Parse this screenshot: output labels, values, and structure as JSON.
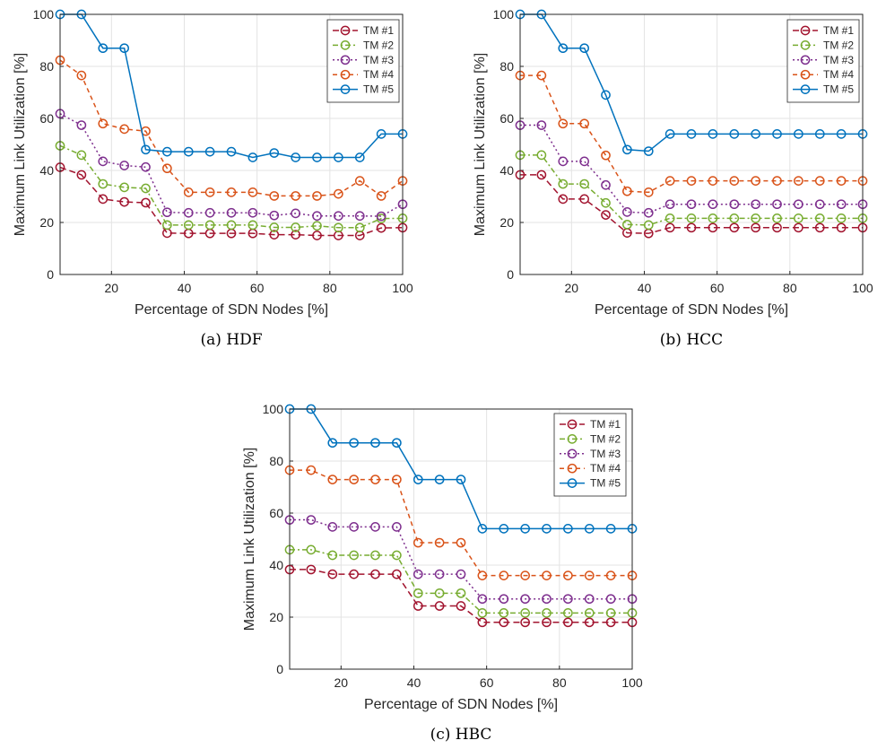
{
  "series_style": {
    "colors": [
      "#A2142F",
      "#77AC30",
      "#7E2F8E",
      "#D95319",
      "#0072BD"
    ],
    "dashes": [
      "7 4",
      "6 3 2 3",
      "2 3",
      "5 4",
      ""
    ]
  },
  "chart_data": [
    {
      "type": "line",
      "caption": "(a) HDF",
      "xlabel": "Percentage of SDN Nodes [%]",
      "ylabel": "Maximum Link Utilization [%]",
      "xlim": [
        5.88,
        100
      ],
      "ylim": [
        0,
        100
      ],
      "xticks": [
        "20",
        "40",
        "60",
        "80",
        "100"
      ],
      "yticks": [
        "0",
        "20",
        "40",
        "60",
        "80",
        "100"
      ],
      "grid": true,
      "legend_position": "top-right",
      "x": [
        5.88,
        11.76,
        17.65,
        23.53,
        29.41,
        35.29,
        41.18,
        47.06,
        52.94,
        58.82,
        64.71,
        70.59,
        76.47,
        82.35,
        88.24,
        94.12,
        100
      ],
      "series": [
        {
          "name": "TM #1",
          "values": [
            41.2,
            38.3,
            29.0,
            27.9,
            27.6,
            15.9,
            15.8,
            15.8,
            15.8,
            15.8,
            15.3,
            15.3,
            15.0,
            15.0,
            15.0,
            17.9,
            18.0
          ]
        },
        {
          "name": "TM #2",
          "values": [
            49.5,
            45.9,
            34.8,
            33.5,
            33.1,
            19.0,
            19.0,
            19.0,
            19.0,
            19.0,
            18.1,
            18.1,
            18.7,
            18.0,
            18.0,
            21.5,
            21.6
          ]
        },
        {
          "name": "TM #3",
          "values": [
            61.8,
            57.4,
            43.5,
            41.9,
            41.3,
            23.9,
            23.7,
            23.7,
            23.7,
            23.7,
            22.7,
            23.5,
            22.5,
            22.5,
            22.5,
            22.4,
            27.0
          ]
        },
        {
          "name": "TM #4",
          "values": [
            82.4,
            76.5,
            58.0,
            55.9,
            55.1,
            40.8,
            31.6,
            31.6,
            31.6,
            31.6,
            30.2,
            30.2,
            30.2,
            31.0,
            36.0,
            30.2,
            36.0
          ]
        },
        {
          "name": "TM #5",
          "values": [
            100,
            100,
            87.0,
            87.0,
            48.0,
            47.2,
            47.2,
            47.2,
            47.2,
            45.0,
            46.7,
            45.0,
            45.0,
            45.0,
            45.0,
            54.0,
            54.0
          ]
        }
      ]
    },
    {
      "type": "line",
      "caption": "(b) HCC",
      "xlabel": "Percentage of SDN Nodes [%]",
      "ylabel": "Maximum Link Utilization [%]",
      "xlim": [
        5.88,
        100
      ],
      "ylim": [
        0,
        100
      ],
      "xticks": [
        "20",
        "40",
        "60",
        "80",
        "100"
      ],
      "yticks": [
        "0",
        "20",
        "40",
        "60",
        "80",
        "100"
      ],
      "grid": true,
      "legend_position": "top-right",
      "x": [
        5.88,
        11.76,
        17.65,
        23.53,
        29.41,
        35.29,
        41.18,
        47.06,
        52.94,
        58.82,
        64.71,
        70.59,
        76.47,
        82.35,
        88.24,
        94.12,
        100
      ],
      "series": [
        {
          "name": "TM #1",
          "values": [
            38.3,
            38.3,
            29.0,
            29.0,
            22.9,
            16.0,
            15.8,
            18.0,
            18.0,
            18.0,
            18.0,
            18.0,
            18.0,
            18.0,
            18.0,
            18.0,
            18.0
          ]
        },
        {
          "name": "TM #2",
          "values": [
            45.9,
            45.9,
            34.8,
            34.8,
            27.5,
            19.2,
            19.0,
            21.6,
            21.6,
            21.6,
            21.6,
            21.6,
            21.6,
            21.6,
            21.6,
            21.6,
            21.6
          ]
        },
        {
          "name": "TM #3",
          "values": [
            57.4,
            57.4,
            43.5,
            43.5,
            34.4,
            24.0,
            23.7,
            27.0,
            27.0,
            27.0,
            27.0,
            27.0,
            27.0,
            27.0,
            27.0,
            27.0,
            27.0
          ]
        },
        {
          "name": "TM #4",
          "values": [
            76.5,
            76.5,
            58.0,
            58.0,
            45.8,
            32.0,
            31.6,
            36.0,
            36.0,
            36.0,
            36.0,
            36.0,
            36.0,
            36.0,
            36.0,
            36.0,
            36.0
          ]
        },
        {
          "name": "TM #5",
          "values": [
            100,
            100,
            87.0,
            87.0,
            69.0,
            48.0,
            47.4,
            54.0,
            54.0,
            54.0,
            54.0,
            54.0,
            54.0,
            54.0,
            54.0,
            54.0,
            54.0
          ]
        }
      ]
    },
    {
      "type": "line",
      "caption": "(c) HBC",
      "xlabel": "Percentage of SDN Nodes [%]",
      "ylabel": "Maximum Link Utilization [%]",
      "xlim": [
        5.88,
        100
      ],
      "ylim": [
        0,
        100
      ],
      "xticks": [
        "20",
        "40",
        "60",
        "80",
        "100"
      ],
      "yticks": [
        "0",
        "20",
        "40",
        "60",
        "80",
        "100"
      ],
      "grid": true,
      "legend_position": "top-right",
      "x": [
        5.88,
        11.76,
        17.65,
        23.53,
        29.41,
        35.29,
        41.18,
        47.06,
        52.94,
        58.82,
        64.71,
        70.59,
        76.47,
        82.35,
        88.24,
        94.12,
        100
      ],
      "series": [
        {
          "name": "TM #1",
          "values": [
            38.3,
            38.3,
            36.5,
            36.5,
            36.5,
            36.5,
            24.3,
            24.3,
            24.3,
            18.0,
            18.0,
            18.0,
            18.0,
            18.0,
            18.0,
            18.0,
            18.0
          ]
        },
        {
          "name": "TM #2",
          "values": [
            45.9,
            45.9,
            43.8,
            43.8,
            43.8,
            43.8,
            29.2,
            29.2,
            29.2,
            21.6,
            21.6,
            21.6,
            21.6,
            21.6,
            21.6,
            21.6,
            21.6
          ]
        },
        {
          "name": "TM #3",
          "values": [
            57.4,
            57.4,
            54.7,
            54.7,
            54.7,
            54.7,
            36.5,
            36.5,
            36.5,
            27.0,
            27.0,
            27.0,
            27.0,
            27.0,
            27.0,
            27.0,
            27.0
          ]
        },
        {
          "name": "TM #4",
          "values": [
            76.5,
            76.5,
            72.9,
            72.9,
            72.9,
            72.9,
            48.6,
            48.6,
            48.6,
            36.0,
            36.0,
            36.0,
            36.0,
            36.0,
            36.0,
            36.0,
            36.0
          ]
        },
        {
          "name": "TM #5",
          "values": [
            100,
            100,
            87.0,
            87.0,
            87.0,
            87.0,
            72.9,
            72.9,
            72.9,
            54.0,
            54.0,
            54.0,
            54.0,
            54.0,
            54.0,
            54.0,
            54.0
          ]
        }
      ]
    }
  ]
}
